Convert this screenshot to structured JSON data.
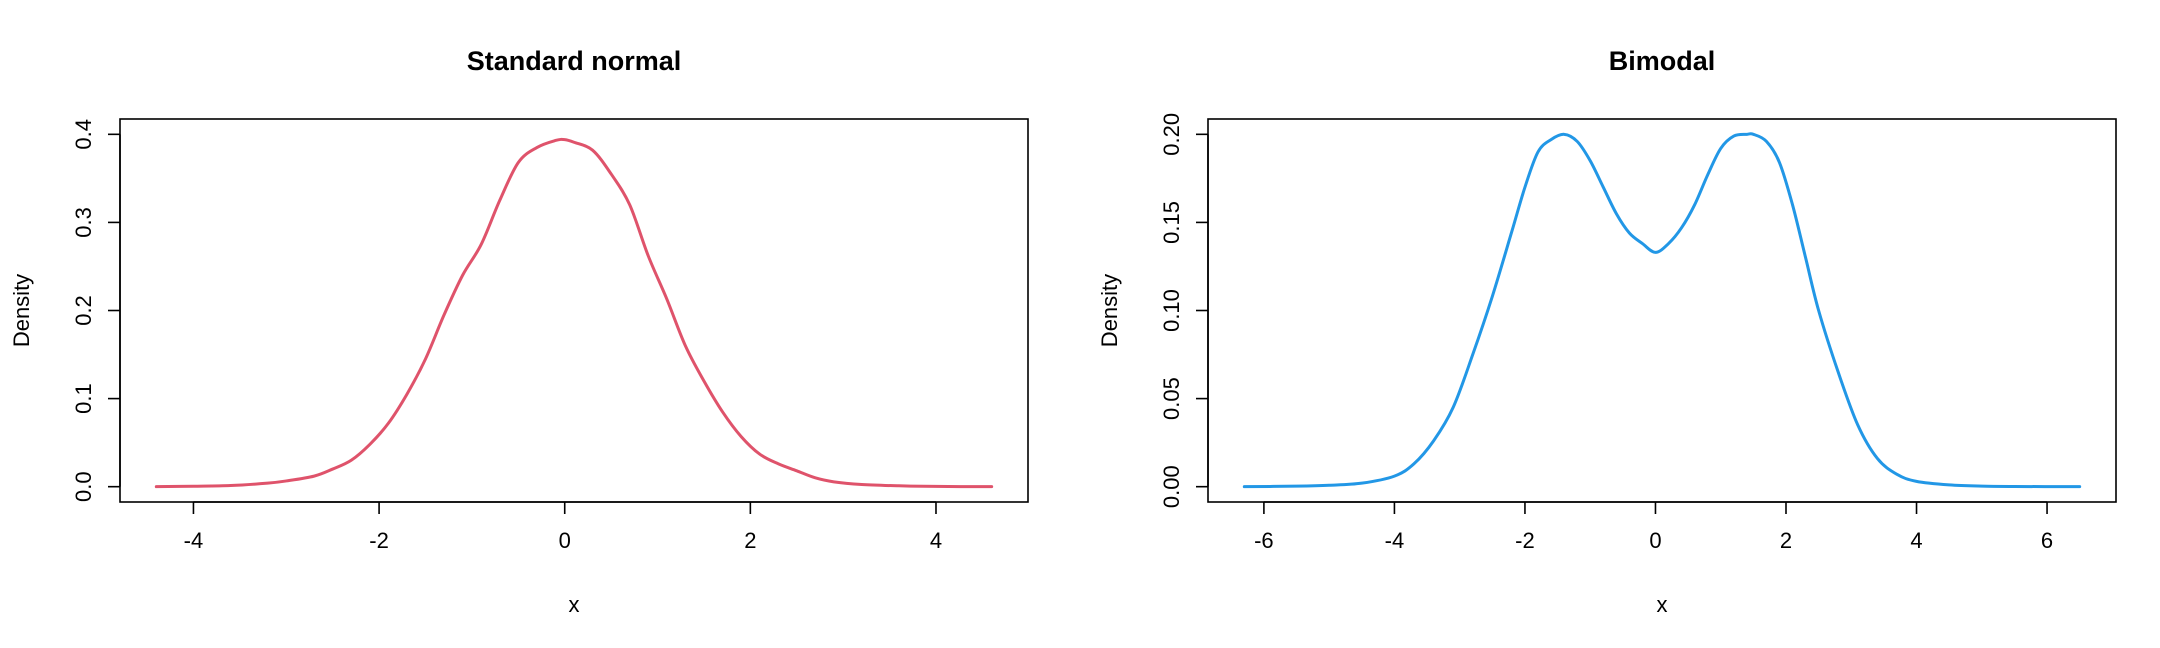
{
  "chart_data": [
    {
      "type": "line",
      "title": "Standard normal",
      "xlabel": "x",
      "ylabel": "Density",
      "xlim": [
        -4.4,
        4.6
      ],
      "ylim": [
        0,
        0.4
      ],
      "xticks": [
        -4,
        -2,
        0,
        2,
        4
      ],
      "xtick_labels": [
        "-4",
        "-2",
        "0",
        "2",
        "4"
      ],
      "yticks": [
        0,
        0.1,
        0.2,
        0.3,
        0.4
      ],
      "ytick_labels": [
        "0.0",
        "0.1",
        "0.2",
        "0.3",
        "0.4"
      ],
      "grid": false,
      "color": "#DF536B",
      "series": [
        {
          "x": [
            -4.4,
            -4.0,
            -3.6,
            -3.2,
            -3.0,
            -2.7,
            -2.5,
            -2.3,
            -2.1,
            -1.9,
            -1.7,
            -1.5,
            -1.3,
            -1.1,
            -0.9,
            -0.7,
            -0.5,
            -0.3,
            -0.1,
            0.0,
            0.1,
            0.3,
            0.5,
            0.7,
            0.9,
            1.1,
            1.3,
            1.5,
            1.7,
            1.9,
            2.1,
            2.3,
            2.5,
            2.7,
            2.9,
            3.2,
            3.6,
            4.0,
            4.6
          ],
          "y": [
            0.0,
            0.0005,
            0.0013,
            0.004,
            0.0065,
            0.012,
            0.02,
            0.03,
            0.048,
            0.072,
            0.105,
            0.145,
            0.195,
            0.24,
            0.275,
            0.325,
            0.368,
            0.385,
            0.393,
            0.394,
            0.391,
            0.382,
            0.355,
            0.32,
            0.262,
            0.213,
            0.16,
            0.12,
            0.085,
            0.057,
            0.037,
            0.026,
            0.018,
            0.01,
            0.0055,
            0.0025,
            0.001,
            0.0003,
            0.0
          ]
        }
      ]
    },
    {
      "type": "line",
      "title": "Bimodal",
      "xlabel": "x",
      "ylabel": "Density",
      "xlim": [
        -6.3,
        6.5
      ],
      "ylim": [
        0,
        0.2
      ],
      "xticks": [
        -6,
        -4,
        -2,
        0,
        2,
        4,
        6
      ],
      "xtick_labels": [
        "-6",
        "-4",
        "-2",
        "0",
        "2",
        "4",
        "6"
      ],
      "yticks": [
        0,
        0.05,
        0.1,
        0.15,
        0.2
      ],
      "ytick_labels": [
        "0.00",
        "0.05",
        "0.10",
        "0.15",
        "0.20"
      ],
      "grid": false,
      "color": "#2297E6",
      "series": [
        {
          "x": [
            -6.3,
            -5.5,
            -5.0,
            -4.5,
            -4.0,
            -3.7,
            -3.4,
            -3.1,
            -2.8,
            -2.5,
            -2.2,
            -2.0,
            -1.8,
            -1.6,
            -1.4,
            -1.2,
            -1.0,
            -0.8,
            -0.6,
            -0.4,
            -0.2,
            0.0,
            0.2,
            0.4,
            0.6,
            0.8,
            1.0,
            1.2,
            1.4,
            1.5,
            1.7,
            1.9,
            2.1,
            2.3,
            2.5,
            2.8,
            3.1,
            3.4,
            3.7,
            4.0,
            4.5,
            5.0,
            5.5,
            6.5
          ],
          "y": [
            0.0,
            0.0003,
            0.0008,
            0.002,
            0.006,
            0.013,
            0.026,
            0.045,
            0.075,
            0.108,
            0.145,
            0.17,
            0.19,
            0.197,
            0.2,
            0.196,
            0.185,
            0.17,
            0.155,
            0.144,
            0.138,
            0.133,
            0.138,
            0.147,
            0.16,
            0.177,
            0.192,
            0.199,
            0.2,
            0.2,
            0.196,
            0.184,
            0.16,
            0.13,
            0.1,
            0.065,
            0.035,
            0.016,
            0.007,
            0.003,
            0.001,
            0.0003,
            0.0001,
            0.0
          ]
        }
      ]
    }
  ]
}
